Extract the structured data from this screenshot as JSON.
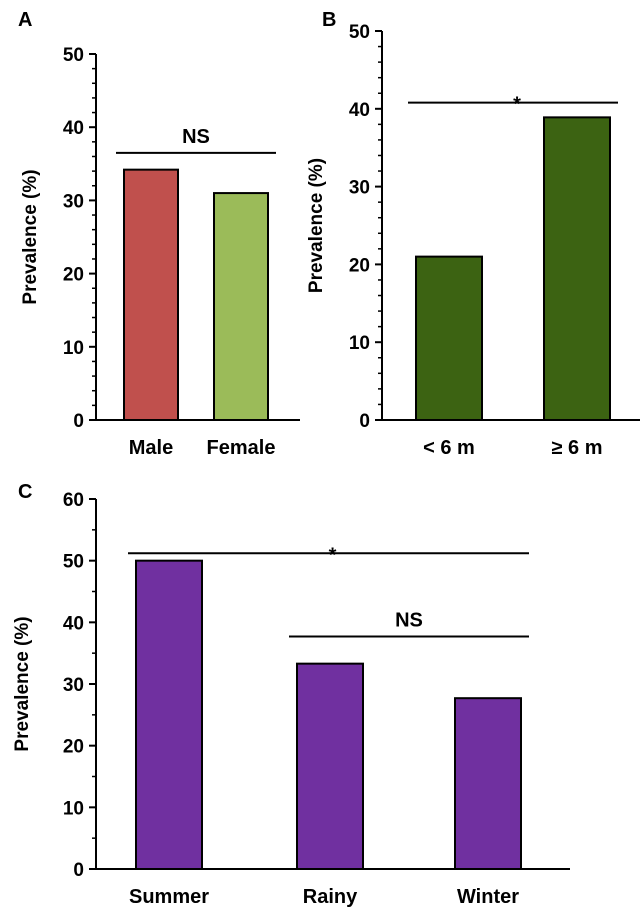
{
  "chart_data": [
    {
      "panel": "A",
      "type": "bar",
      "categories": [
        "Male",
        "Female"
      ],
      "values": [
        34.2,
        31.0
      ],
      "colors": [
        "#c0504d",
        "#9bbb59"
      ],
      "ylabel": "Prevalence (%)",
      "ylim": [
        0,
        50
      ],
      "yticks": [
        0,
        10,
        20,
        30,
        40,
        50
      ],
      "grid": false,
      "annotations": [
        {
          "text": "NS",
          "from": 0,
          "to": 1,
          "level": 36.5
        }
      ]
    },
    {
      "panel": "B",
      "type": "bar",
      "categories": [
        "< 6 m",
        "≥ 6 m"
      ],
      "values": [
        21.0,
        38.9
      ],
      "colors": [
        "#3c6312",
        "#3c6312"
      ],
      "ylabel": "Prevalence (%)",
      "ylim": [
        0,
        50
      ],
      "yticks": [
        0,
        10,
        20,
        30,
        40,
        50
      ],
      "grid": false,
      "annotations": [
        {
          "text": "*",
          "from": 0,
          "to": 1,
          "level": 40.8
        }
      ]
    },
    {
      "panel": "C",
      "type": "bar",
      "categories": [
        "Summer",
        "Rainy",
        "Winter"
      ],
      "values": [
        50.0,
        33.3,
        27.7
      ],
      "colors": [
        "#7030a0",
        "#7030a0",
        "#7030a0"
      ],
      "ylabel": "Prevalence (%)",
      "ylim": [
        0,
        60
      ],
      "yticks": [
        0,
        10,
        20,
        30,
        40,
        50,
        60
      ],
      "grid": false,
      "annotations": [
        {
          "text": "*",
          "from": 0,
          "to": 2,
          "level": 51.2
        },
        {
          "text": "NS",
          "from": 1,
          "to": 2,
          "level": 37.7
        }
      ]
    }
  ]
}
